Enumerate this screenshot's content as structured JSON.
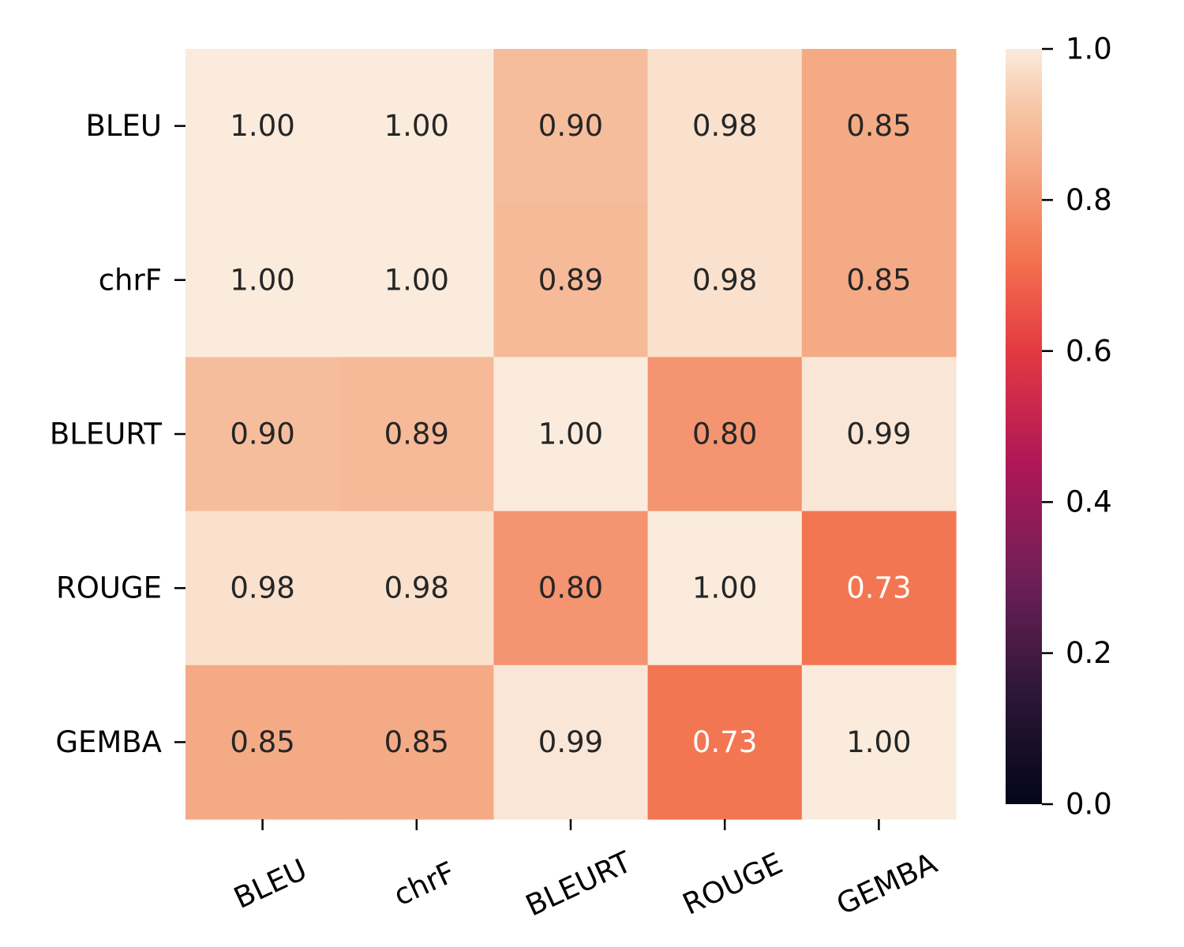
{
  "chart_data": {
    "type": "heatmap",
    "title": "",
    "xlabel": "",
    "ylabel": "",
    "rows": [
      "BLEU",
      "chrF",
      "BLEURT",
      "ROUGE",
      "GEMBA"
    ],
    "columns": [
      "BLEU",
      "chrF",
      "BLEURT",
      "ROUGE",
      "GEMBA"
    ],
    "values": [
      [
        1.0,
        1.0,
        0.9,
        0.98,
        0.85
      ],
      [
        1.0,
        1.0,
        0.89,
        0.98,
        0.85
      ],
      [
        0.9,
        0.89,
        1.0,
        0.8,
        0.99
      ],
      [
        0.98,
        0.98,
        0.8,
        1.0,
        0.73
      ],
      [
        0.85,
        0.85,
        0.99,
        0.73,
        1.0
      ]
    ],
    "value_format": "0.00",
    "colormap": "rocket",
    "color_range": [
      0.0,
      1.0
    ],
    "colorbar_ticks": [
      "0.0",
      "0.2",
      "0.4",
      "0.6",
      "0.8",
      "1.0"
    ]
  }
}
